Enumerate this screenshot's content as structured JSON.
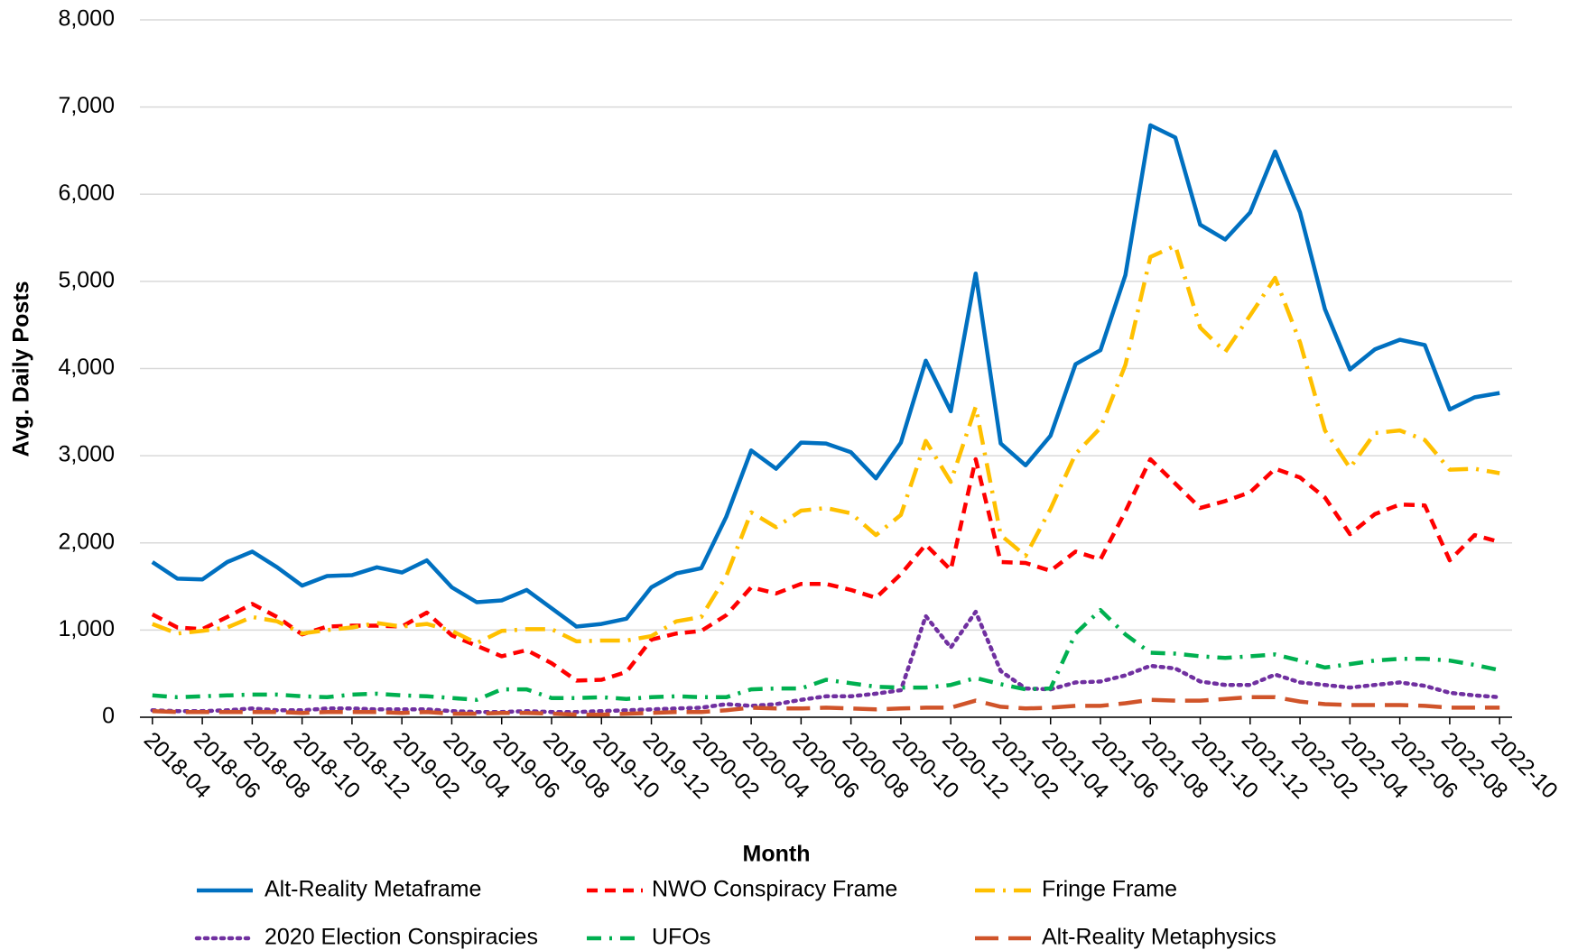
{
  "chart_data": {
    "type": "line",
    "x_label": "Month",
    "y_label": "Avg. Daily Posts",
    "categories": [
      "2018-04",
      null,
      "2018-06",
      null,
      "2018-08",
      null,
      "2018-10",
      null,
      "2018-12",
      null,
      "2019-02",
      null,
      "2019-04",
      null,
      "2019-06",
      null,
      "2019-08",
      null,
      "2019-10",
      null,
      "2019-12",
      null,
      "2020-02",
      null,
      "2020-04",
      null,
      "2020-06",
      null,
      "2020-08",
      null,
      "2020-10",
      null,
      "2020-12",
      null,
      "2021-02",
      null,
      "2021-04",
      null,
      "2021-06",
      null,
      "2021-08",
      null,
      "2021-10",
      null,
      "2021-12",
      null,
      "2022-02",
      null,
      "2022-04",
      null,
      "2022-06",
      null,
      "2022-08",
      null,
      "2022-10"
    ],
    "ylim": [
      0,
      8000
    ],
    "yticks": [
      0,
      {
        "value": 1000,
        "label": "1,000"
      },
      {
        "value": 2000,
        "label": "2,000"
      },
      {
        "value": 3000,
        "label": "3,000"
      },
      {
        "value": 4000,
        "label": "4,000"
      },
      {
        "value": 5000,
        "label": "5,000"
      },
      {
        "value": 6000,
        "label": "6,000"
      },
      {
        "value": 7000,
        "label": "7,000"
      },
      {
        "value": 8000,
        "label": "8,000"
      }
    ],
    "grid": true,
    "legend": "bottom",
    "series": [
      {
        "name": "Alt-Reality Metaframe",
        "color": "#0070c0",
        "dash": "solid",
        "values": [
          1780,
          1590,
          1580,
          1780,
          1900,
          1720,
          1510,
          1620,
          1630,
          1720,
          1660,
          1800,
          1490,
          1320,
          1340,
          1460,
          1250,
          1040,
          1070,
          1130,
          1490,
          1650,
          1710,
          2300,
          3060,
          2850,
          3150,
          3140,
          3040,
          2740,
          3150,
          4090,
          3510,
          5090,
          3140,
          2890,
          3230,
          4050,
          4210,
          5070,
          6790,
          6650,
          5650,
          5480,
          5790,
          6490,
          5790,
          4680,
          3990,
          4220,
          4330,
          4270,
          3530,
          3670,
          3720
        ]
      },
      {
        "name": "NWO Conspiracy Frame",
        "color": "#ff0000",
        "dash": "dash",
        "values": [
          1180,
          1030,
          1010,
          1150,
          1300,
          1150,
          950,
          1040,
          1050,
          1050,
          1040,
          1200,
          940,
          820,
          700,
          770,
          620,
          420,
          430,
          520,
          890,
          960,
          990,
          1170,
          1490,
          1420,
          1530,
          1530,
          1460,
          1370,
          1640,
          1980,
          1690,
          2960,
          1780,
          1770,
          1680,
          1900,
          1810,
          2360,
          2960,
          2680,
          2400,
          2480,
          2580,
          2850,
          2750,
          2520,
          2100,
          2330,
          2440,
          2430,
          1800,
          2090,
          2010
        ]
      },
      {
        "name": "Fringe Frame",
        "color": "#ffc000",
        "dash": "longdashdot",
        "values": [
          1070,
          960,
          990,
          1030,
          1150,
          1100,
          960,
          1000,
          1030,
          1080,
          1040,
          1070,
          990,
          850,
          990,
          1010,
          1010,
          870,
          880,
          880,
          930,
          1100,
          1150,
          1620,
          2350,
          2180,
          2370,
          2400,
          2340,
          2090,
          2320,
          3170,
          2700,
          3560,
          2090,
          1850,
          2390,
          3020,
          3320,
          4040,
          5280,
          5410,
          4470,
          4190,
          4610,
          5040,
          4300,
          3290,
          2860,
          3260,
          3290,
          3180,
          2840,
          2850,
          2800
        ]
      },
      {
        "name": "2020 Election Conspiracies",
        "color": "#7030a0",
        "dash": "dot",
        "values": [
          80,
          70,
          70,
          80,
          100,
          80,
          80,
          100,
          100,
          90,
          90,
          90,
          70,
          60,
          60,
          70,
          60,
          60,
          70,
          80,
          90,
          100,
          110,
          150,
          130,
          150,
          200,
          240,
          240,
          270,
          310,
          1160,
          800,
          1210,
          530,
          330,
          320,
          400,
          410,
          480,
          590,
          560,
          410,
          370,
          370,
          490,
          400,
          370,
          340,
          370,
          400,
          360,
          280,
          250,
          230
        ]
      },
      {
        "name": "UFOs",
        "color": "#00b050",
        "dash": "dashdot",
        "values": [
          250,
          230,
          240,
          250,
          260,
          260,
          240,
          230,
          260,
          270,
          250,
          240,
          220,
          200,
          320,
          320,
          220,
          220,
          230,
          210,
          230,
          240,
          230,
          230,
          320,
          330,
          330,
          430,
          390,
          350,
          340,
          340,
          370,
          450,
          380,
          320,
          330,
          960,
          1230,
          950,
          740,
          730,
          700,
          680,
          700,
          720,
          650,
          570,
          610,
          650,
          670,
          670,
          650,
          600,
          540
        ]
      },
      {
        "name": "Alt-Reality Metaphysics",
        "color": "#d0542a",
        "dash": "longdash",
        "values": [
          70,
          60,
          60,
          60,
          60,
          60,
          50,
          60,
          60,
          60,
          50,
          60,
          40,
          40,
          50,
          50,
          40,
          30,
          30,
          40,
          50,
          60,
          60,
          80,
          110,
          100,
          100,
          110,
          100,
          90,
          100,
          110,
          110,
          190,
          120,
          100,
          110,
          130,
          130,
          160,
          200,
          190,
          190,
          210,
          230,
          230,
          180,
          150,
          140,
          140,
          140,
          130,
          110,
          110,
          110
        ]
      }
    ]
  }
}
